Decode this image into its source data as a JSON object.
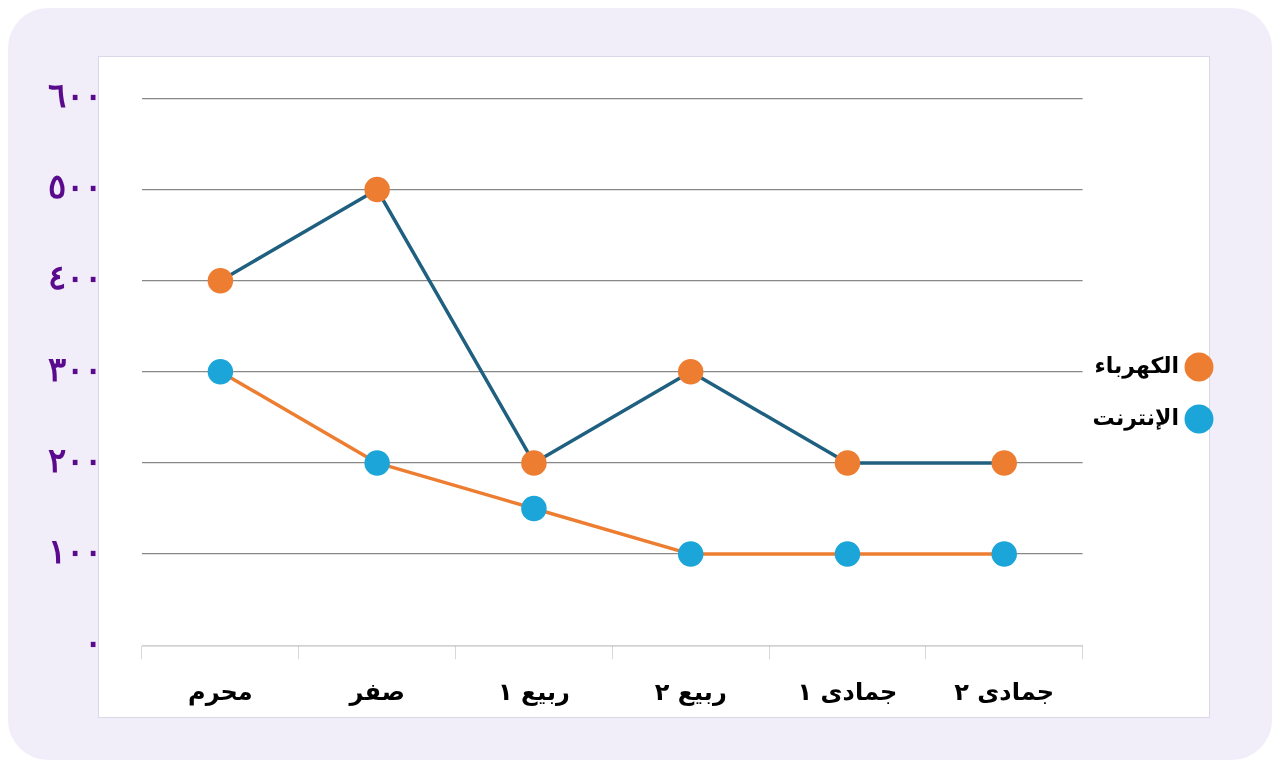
{
  "chart_data": {
    "type": "line",
    "categories": [
      "محرم",
      "صفر",
      "ربيع ١",
      "ربيع ٢",
      "جمادى ١",
      "جمادى ٢"
    ],
    "series": [
      {
        "name": "الكهرباء",
        "color": "#1f6080",
        "colors": [
          "#ed7d31",
          "#ed7d31",
          "#ed7d31",
          "#ed7d31",
          "#ed7d31",
          "#ed7d31"
        ],
        "values": [
          400,
          500,
          200,
          300,
          200,
          200
        ]
      },
      {
        "name": "الإنترنت",
        "color": "#ed7d31",
        "colors": [
          "#1ca5d8",
          "#1ca5d8",
          "#1ca5d8",
          "#1ca5d8",
          "#1ca5d8",
          "#1ca5d8"
        ],
        "values": [
          300,
          200,
          150,
          100,
          100,
          100
        ]
      }
    ],
    "ylim": [
      0,
      600
    ],
    "yticks": [
      {
        "value": 0,
        "label": "٠"
      },
      {
        "value": 100,
        "label": "١٠٠"
      },
      {
        "value": 200,
        "label": "٢٠٠"
      },
      {
        "value": 300,
        "label": "٣٠٠"
      },
      {
        "value": 400,
        "label": "٤٠٠"
      },
      {
        "value": 500,
        "label": "٥٠٠"
      },
      {
        "value": 600,
        "label": "٦٠٠"
      }
    ],
    "grid": "y",
    "legend": "right",
    "marker": "circle",
    "line_style": "solid"
  }
}
